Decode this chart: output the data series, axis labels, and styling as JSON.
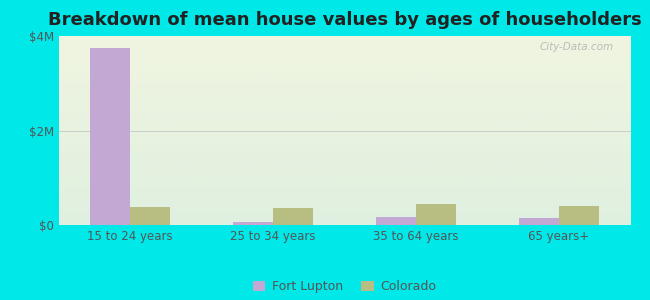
{
  "title": "Breakdown of mean house values by ages of householders",
  "categories": [
    "15 to 24 years",
    "25 to 34 years",
    "35 to 64 years",
    "65 years+"
  ],
  "fort_lupton_values": [
    3750000,
    68000,
    175000,
    140000
  ],
  "colorado_values": [
    390000,
    370000,
    440000,
    410000
  ],
  "fort_lupton_color": "#c4a8d4",
  "colorado_color": "#b8be82",
  "ylim": [
    0,
    4000000
  ],
  "yticks": [
    0,
    2000000,
    4000000
  ],
  "ytick_labels": [
    "$0",
    "$2M",
    "$4M"
  ],
  "bar_width": 0.28,
  "background_color": "#00e8e8",
  "grad_top_color": "#f0f5e0",
  "grad_bottom_color": "#e0f0e0",
  "legend_fort_lupton": "Fort Lupton",
  "legend_colorado": "Colorado",
  "watermark": "City-Data.com",
  "title_fontsize": 13,
  "label_fontsize": 9,
  "tick_fontsize": 8.5,
  "tick_color": "#555555",
  "title_color": "#222222"
}
